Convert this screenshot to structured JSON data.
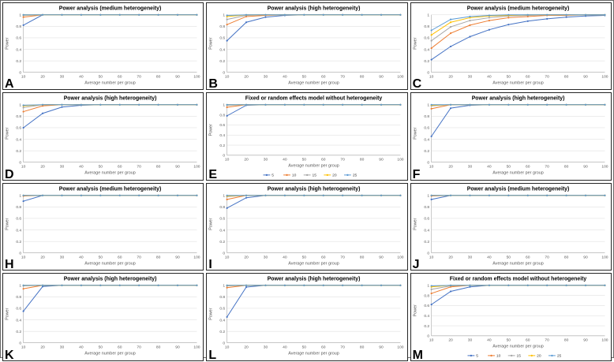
{
  "shared": {
    "series_names": [
      "5",
      "10",
      "15",
      "20",
      "25"
    ],
    "series_colors": [
      "#4472C4",
      "#ED7D31",
      "#A5A5A5",
      "#FFC000",
      "#5B9BD5"
    ],
    "y_ticks": [
      "0",
      "0.2",
      "0.4",
      "0.6",
      "0.8",
      "1"
    ],
    "y_tick_values": [
      0,
      0.2,
      0.4,
      0.6,
      0.8,
      1
    ],
    "grid_color": "#d9d9d9",
    "axis_color": "#a6a6a6",
    "panel_border": "#262626"
  },
  "chart_data": [
    {
      "type": "line",
      "letter": "A",
      "title": "Power analysis (medium heterogeneity)",
      "xlabel": "Average number per group",
      "ylabel": "Power",
      "ylim": [
        0,
        1
      ],
      "legend": false,
      "x": [
        10,
        20,
        30,
        40,
        50,
        60,
        70,
        80,
        90,
        100
      ],
      "series": [
        {
          "name": "5",
          "values": [
            0.82,
            1,
            1,
            1,
            1,
            1,
            1,
            1,
            1,
            1
          ]
        },
        {
          "name": "10",
          "values": [
            0.96,
            1,
            1,
            1,
            1,
            1,
            1,
            1,
            1,
            1
          ]
        },
        {
          "name": "15",
          "values": [
            0.99,
            1,
            1,
            1,
            1,
            1,
            1,
            1,
            1,
            1
          ]
        },
        {
          "name": "20",
          "values": [
            1,
            1,
            1,
            1,
            1,
            1,
            1,
            1,
            1,
            1
          ]
        },
        {
          "name": "25",
          "values": [
            1,
            1,
            1,
            1,
            1,
            1,
            1,
            1,
            1,
            1
          ]
        }
      ]
    },
    {
      "type": "line",
      "letter": "B",
      "title": "Power analysis (high heterogeneity)",
      "xlabel": "Average number per group",
      "ylabel": "Power",
      "ylim": [
        0,
        1
      ],
      "legend": false,
      "x": [
        10,
        20,
        30,
        40,
        50,
        60,
        70,
        80,
        90,
        100
      ],
      "series": [
        {
          "name": "5",
          "values": [
            0.55,
            0.87,
            0.96,
            0.99,
            1,
            1,
            1,
            1,
            1,
            1
          ]
        },
        {
          "name": "10",
          "values": [
            0.83,
            0.97,
            0.99,
            1,
            1,
            1,
            1,
            1,
            1,
            1
          ]
        },
        {
          "name": "15",
          "values": [
            0.92,
            0.99,
            1,
            1,
            1,
            1,
            1,
            1,
            1,
            1
          ]
        },
        {
          "name": "20",
          "values": [
            0.97,
            1,
            1,
            1,
            1,
            1,
            1,
            1,
            1,
            1
          ]
        },
        {
          "name": "25",
          "values": [
            0.99,
            1,
            1,
            1,
            1,
            1,
            1,
            1,
            1,
            1
          ]
        }
      ]
    },
    {
      "type": "line",
      "letter": "C",
      "title": "Power analysis (medium heterogeneity)",
      "xlabel": "Average number per group",
      "ylabel": "Power",
      "ylim": [
        0,
        1
      ],
      "legend": false,
      "x": [
        10,
        20,
        30,
        40,
        50,
        60,
        70,
        80,
        90,
        100
      ],
      "series": [
        {
          "name": "5",
          "values": [
            0.22,
            0.45,
            0.62,
            0.74,
            0.83,
            0.89,
            0.93,
            0.96,
            0.98,
            0.99
          ]
        },
        {
          "name": "10",
          "values": [
            0.42,
            0.68,
            0.82,
            0.9,
            0.95,
            0.97,
            0.99,
            0.99,
            1,
            1
          ]
        },
        {
          "name": "15",
          "values": [
            0.55,
            0.79,
            0.9,
            0.95,
            0.98,
            0.99,
            1,
            1,
            1,
            1
          ]
        },
        {
          "name": "20",
          "values": [
            0.65,
            0.87,
            0.95,
            0.98,
            0.99,
            1,
            1,
            1,
            1,
            1
          ]
        },
        {
          "name": "25",
          "values": [
            0.73,
            0.92,
            0.97,
            0.99,
            1,
            1,
            1,
            1,
            1,
            1
          ]
        }
      ]
    },
    {
      "type": "line",
      "letter": "D",
      "title": "Power analysis (high heterogeneity)",
      "xlabel": "Average number per group",
      "ylabel": "Power",
      "ylim": [
        0,
        1
      ],
      "legend": false,
      "x": [
        10,
        20,
        30,
        40,
        50,
        60,
        70,
        80,
        90,
        100
      ],
      "series": [
        {
          "name": "5",
          "values": [
            0.6,
            0.85,
            0.96,
            0.99,
            1,
            1,
            1,
            1,
            1,
            1
          ]
        },
        {
          "name": "10",
          "values": [
            0.88,
            0.98,
            1,
            1,
            1,
            1,
            1,
            1,
            1,
            1
          ]
        },
        {
          "name": "15",
          "values": [
            0.95,
            1,
            1,
            1,
            1,
            1,
            1,
            1,
            1,
            1
          ]
        },
        {
          "name": "20",
          "values": [
            0.98,
            1,
            1,
            1,
            1,
            1,
            1,
            1,
            1,
            1
          ]
        },
        {
          "name": "25",
          "values": [
            0.99,
            1,
            1,
            1,
            1,
            1,
            1,
            1,
            1,
            1
          ]
        }
      ]
    },
    {
      "type": "line",
      "letter": "E",
      "title": "Fixed or random effects model without heterogeneity",
      "xlabel": "Average number per group",
      "ylabel": "Power",
      "ylim": [
        0,
        1
      ],
      "legend": true,
      "x": [
        10,
        20,
        30,
        40,
        50,
        60,
        70,
        80,
        90,
        100
      ],
      "series": [
        {
          "name": "5",
          "values": [
            0.78,
            0.99,
            1,
            1,
            1,
            1,
            1,
            1,
            1,
            1
          ]
        },
        {
          "name": "10",
          "values": [
            0.95,
            1,
            1,
            1,
            1,
            1,
            1,
            1,
            1,
            1
          ]
        },
        {
          "name": "15",
          "values": [
            0.99,
            1,
            1,
            1,
            1,
            1,
            1,
            1,
            1,
            1
          ]
        },
        {
          "name": "20",
          "values": [
            1,
            1,
            1,
            1,
            1,
            1,
            1,
            1,
            1,
            1
          ]
        },
        {
          "name": "25",
          "values": [
            1,
            1,
            1,
            1,
            1,
            1,
            1,
            1,
            1,
            1
          ]
        }
      ]
    },
    {
      "type": "line",
      "letter": "F",
      "title": "Power analysis (high heterogeneity)",
      "xlabel": "Average number per group",
      "ylabel": "Power",
      "ylim": [
        0,
        1
      ],
      "legend": false,
      "x": [
        10,
        20,
        30,
        40,
        50,
        60,
        70,
        80,
        90,
        100
      ],
      "series": [
        {
          "name": "5",
          "values": [
            0.45,
            0.94,
            0.99,
            1,
            1,
            1,
            1,
            1,
            1,
            1
          ]
        },
        {
          "name": "10",
          "values": [
            0.93,
            1,
            1,
            1,
            1,
            1,
            1,
            1,
            1,
            1
          ]
        },
        {
          "name": "15",
          "values": [
            0.98,
            1,
            1,
            1,
            1,
            1,
            1,
            1,
            1,
            1
          ]
        },
        {
          "name": "20",
          "values": [
            0.99,
            1,
            1,
            1,
            1,
            1,
            1,
            1,
            1,
            1
          ]
        },
        {
          "name": "25",
          "values": [
            1,
            1,
            1,
            1,
            1,
            1,
            1,
            1,
            1,
            1
          ]
        }
      ]
    },
    {
      "type": "line",
      "letter": "H",
      "title": "Power analysis (medium heterogeneity)",
      "xlabel": "Average number per group",
      "ylabel": "Power",
      "ylim": [
        0,
        1
      ],
      "legend": false,
      "x": [
        10,
        20,
        30,
        40,
        50,
        60,
        70,
        80,
        90,
        100
      ],
      "series": [
        {
          "name": "5",
          "values": [
            0.9,
            1,
            1,
            1,
            1,
            1,
            1,
            1,
            1,
            1
          ]
        },
        {
          "name": "10",
          "values": [
            0.99,
            1,
            1,
            1,
            1,
            1,
            1,
            1,
            1,
            1
          ]
        },
        {
          "name": "15",
          "values": [
            1,
            1,
            1,
            1,
            1,
            1,
            1,
            1,
            1,
            1
          ]
        },
        {
          "name": "20",
          "values": [
            1,
            1,
            1,
            1,
            1,
            1,
            1,
            1,
            1,
            1
          ]
        },
        {
          "name": "25",
          "values": [
            1,
            1,
            1,
            1,
            1,
            1,
            1,
            1,
            1,
            1
          ]
        }
      ]
    },
    {
      "type": "line",
      "letter": "I",
      "title": "Power analysis (high heterogeneity)",
      "xlabel": "Average number per group",
      "ylabel": "Power",
      "ylim": [
        0,
        1
      ],
      "legend": false,
      "x": [
        10,
        20,
        30,
        40,
        50,
        60,
        70,
        80,
        90,
        100
      ],
      "series": [
        {
          "name": "5",
          "values": [
            0.78,
            0.96,
            1,
            1,
            1,
            1,
            1,
            1,
            1,
            1
          ]
        },
        {
          "name": "10",
          "values": [
            0.93,
            1,
            1,
            1,
            1,
            1,
            1,
            1,
            1,
            1
          ]
        },
        {
          "name": "15",
          "values": [
            0.98,
            1,
            1,
            1,
            1,
            1,
            1,
            1,
            1,
            1
          ]
        },
        {
          "name": "20",
          "values": [
            0.99,
            1,
            1,
            1,
            1,
            1,
            1,
            1,
            1,
            1
          ]
        },
        {
          "name": "25",
          "values": [
            1,
            1,
            1,
            1,
            1,
            1,
            1,
            1,
            1,
            1
          ]
        }
      ]
    },
    {
      "type": "line",
      "letter": "J",
      "title": "Power analysis (medium heterogeneity)",
      "xlabel": "Average number per group",
      "ylabel": "Power",
      "ylim": [
        0,
        1
      ],
      "legend": false,
      "x": [
        10,
        20,
        30,
        40,
        50,
        60,
        70,
        80,
        90,
        100
      ],
      "series": [
        {
          "name": "5",
          "values": [
            0.93,
            1,
            1,
            1,
            1,
            1,
            1,
            1,
            1,
            1
          ]
        },
        {
          "name": "10",
          "values": [
            0.99,
            1,
            1,
            1,
            1,
            1,
            1,
            1,
            1,
            1
          ]
        },
        {
          "name": "15",
          "values": [
            1,
            1,
            1,
            1,
            1,
            1,
            1,
            1,
            1,
            1
          ]
        },
        {
          "name": "20",
          "values": [
            1,
            1,
            1,
            1,
            1,
            1,
            1,
            1,
            1,
            1
          ]
        },
        {
          "name": "25",
          "values": [
            1,
            1,
            1,
            1,
            1,
            1,
            1,
            1,
            1,
            1
          ]
        }
      ]
    },
    {
      "type": "line",
      "letter": "K",
      "title": "Power analysis (high heterogeneity)",
      "xlabel": "Average number per group",
      "ylabel": "Power",
      "ylim": [
        0,
        1
      ],
      "legend": false,
      "x": [
        10,
        20,
        30,
        40,
        50,
        60,
        70,
        80,
        90,
        100
      ],
      "series": [
        {
          "name": "5",
          "values": [
            0.55,
            0.98,
            1,
            1,
            1,
            1,
            1,
            1,
            1,
            1
          ]
        },
        {
          "name": "10",
          "values": [
            0.94,
            1,
            1,
            1,
            1,
            1,
            1,
            1,
            1,
            1
          ]
        },
        {
          "name": "15",
          "values": [
            0.99,
            1,
            1,
            1,
            1,
            1,
            1,
            1,
            1,
            1
          ]
        },
        {
          "name": "20",
          "values": [
            1,
            1,
            1,
            1,
            1,
            1,
            1,
            1,
            1,
            1
          ]
        },
        {
          "name": "25",
          "values": [
            1,
            1,
            1,
            1,
            1,
            1,
            1,
            1,
            1,
            1
          ]
        }
      ]
    },
    {
      "type": "line",
      "letter": "L",
      "title": "Power analysis (high heterogeneity)",
      "xlabel": "Average number per group",
      "ylabel": "Power",
      "ylim": [
        0,
        1
      ],
      "legend": false,
      "x": [
        10,
        20,
        30,
        40,
        50,
        60,
        70,
        80,
        90,
        100
      ],
      "series": [
        {
          "name": "5",
          "values": [
            0.45,
            0.97,
            1,
            1,
            1,
            1,
            1,
            1,
            1,
            1
          ]
        },
        {
          "name": "10",
          "values": [
            0.96,
            1,
            1,
            1,
            1,
            1,
            1,
            1,
            1,
            1
          ]
        },
        {
          "name": "15",
          "values": [
            0.99,
            1,
            1,
            1,
            1,
            1,
            1,
            1,
            1,
            1
          ]
        },
        {
          "name": "20",
          "values": [
            1,
            1,
            1,
            1,
            1,
            1,
            1,
            1,
            1,
            1
          ]
        },
        {
          "name": "25",
          "values": [
            1,
            1,
            1,
            1,
            1,
            1,
            1,
            1,
            1,
            1
          ]
        }
      ]
    },
    {
      "type": "line",
      "letter": "M",
      "title": "Fixed or random effects model without heterogeneity",
      "xlabel": "Average number per group",
      "ylabel": "Power",
      "ylim": [
        0,
        1
      ],
      "legend": true,
      "x": [
        10,
        20,
        30,
        40,
        50,
        60,
        70,
        80,
        90,
        100
      ],
      "series": [
        {
          "name": "5",
          "values": [
            0.62,
            0.88,
            0.97,
            1,
            1,
            1,
            1,
            1,
            1,
            1
          ]
        },
        {
          "name": "10",
          "values": [
            0.84,
            0.97,
            1,
            1,
            1,
            1,
            1,
            1,
            1,
            1
          ]
        },
        {
          "name": "15",
          "values": [
            0.92,
            0.99,
            1,
            1,
            1,
            1,
            1,
            1,
            1,
            1
          ]
        },
        {
          "name": "20",
          "values": [
            0.97,
            1,
            1,
            1,
            1,
            1,
            1,
            1,
            1,
            1
          ]
        },
        {
          "name": "25",
          "values": [
            0.99,
            1,
            1,
            1,
            1,
            1,
            1,
            1,
            1,
            1
          ]
        }
      ]
    }
  ]
}
